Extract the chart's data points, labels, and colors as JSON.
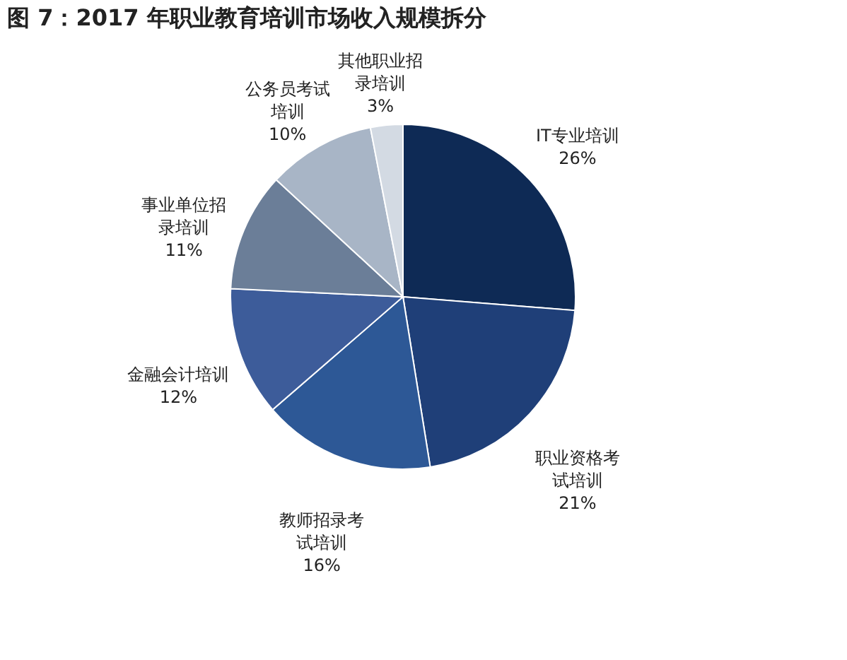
{
  "chart_data": {
    "type": "pie",
    "title": "图 7：2017 年职业教育培训市场收入规模拆分",
    "categories": [
      "IT专业培训",
      "职业资格考试培训",
      "教师招录考试培训",
      "金融会计培训",
      "事业单位招录培训",
      "公务员考试培训",
      "其他职业招录培训"
    ],
    "values": [
      26,
      21,
      16,
      12,
      11,
      10,
      3
    ],
    "value_labels": [
      "26%",
      "21%",
      "16%",
      "12%",
      "11%",
      "10%",
      "3%"
    ],
    "colors": [
      "#0e2a55",
      "#1f3f78",
      "#2d5896",
      "#3d5c9a",
      "#6b7e98",
      "#a8b5c6",
      "#d3dae3"
    ],
    "legend": false
  }
}
